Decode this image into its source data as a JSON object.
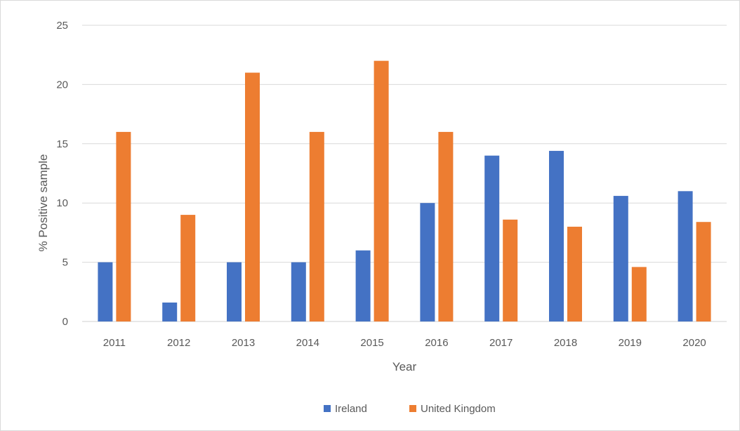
{
  "chart_data": {
    "type": "bar",
    "title": "",
    "xlabel": "Year",
    "ylabel": "% Positive sample",
    "categories": [
      "2011",
      "2012",
      "2013",
      "2014",
      "2015",
      "2016",
      "2017",
      "2018",
      "2019",
      "2020"
    ],
    "series": [
      {
        "name": "Ireland",
        "color": "#4472c4",
        "values": [
          5,
          1.6,
          5,
          5,
          6,
          10,
          14,
          14.4,
          10.6,
          11
        ]
      },
      {
        "name": "United Kingdom",
        "color": "#ed7d31",
        "values": [
          16,
          9,
          21,
          16,
          22,
          16,
          8.6,
          8,
          4.6,
          8.4
        ]
      }
    ],
    "ylim": [
      0,
      25
    ],
    "yticks": [
      0,
      5,
      10,
      15,
      20,
      25
    ],
    "grid": true,
    "legend_position": "bottom"
  }
}
